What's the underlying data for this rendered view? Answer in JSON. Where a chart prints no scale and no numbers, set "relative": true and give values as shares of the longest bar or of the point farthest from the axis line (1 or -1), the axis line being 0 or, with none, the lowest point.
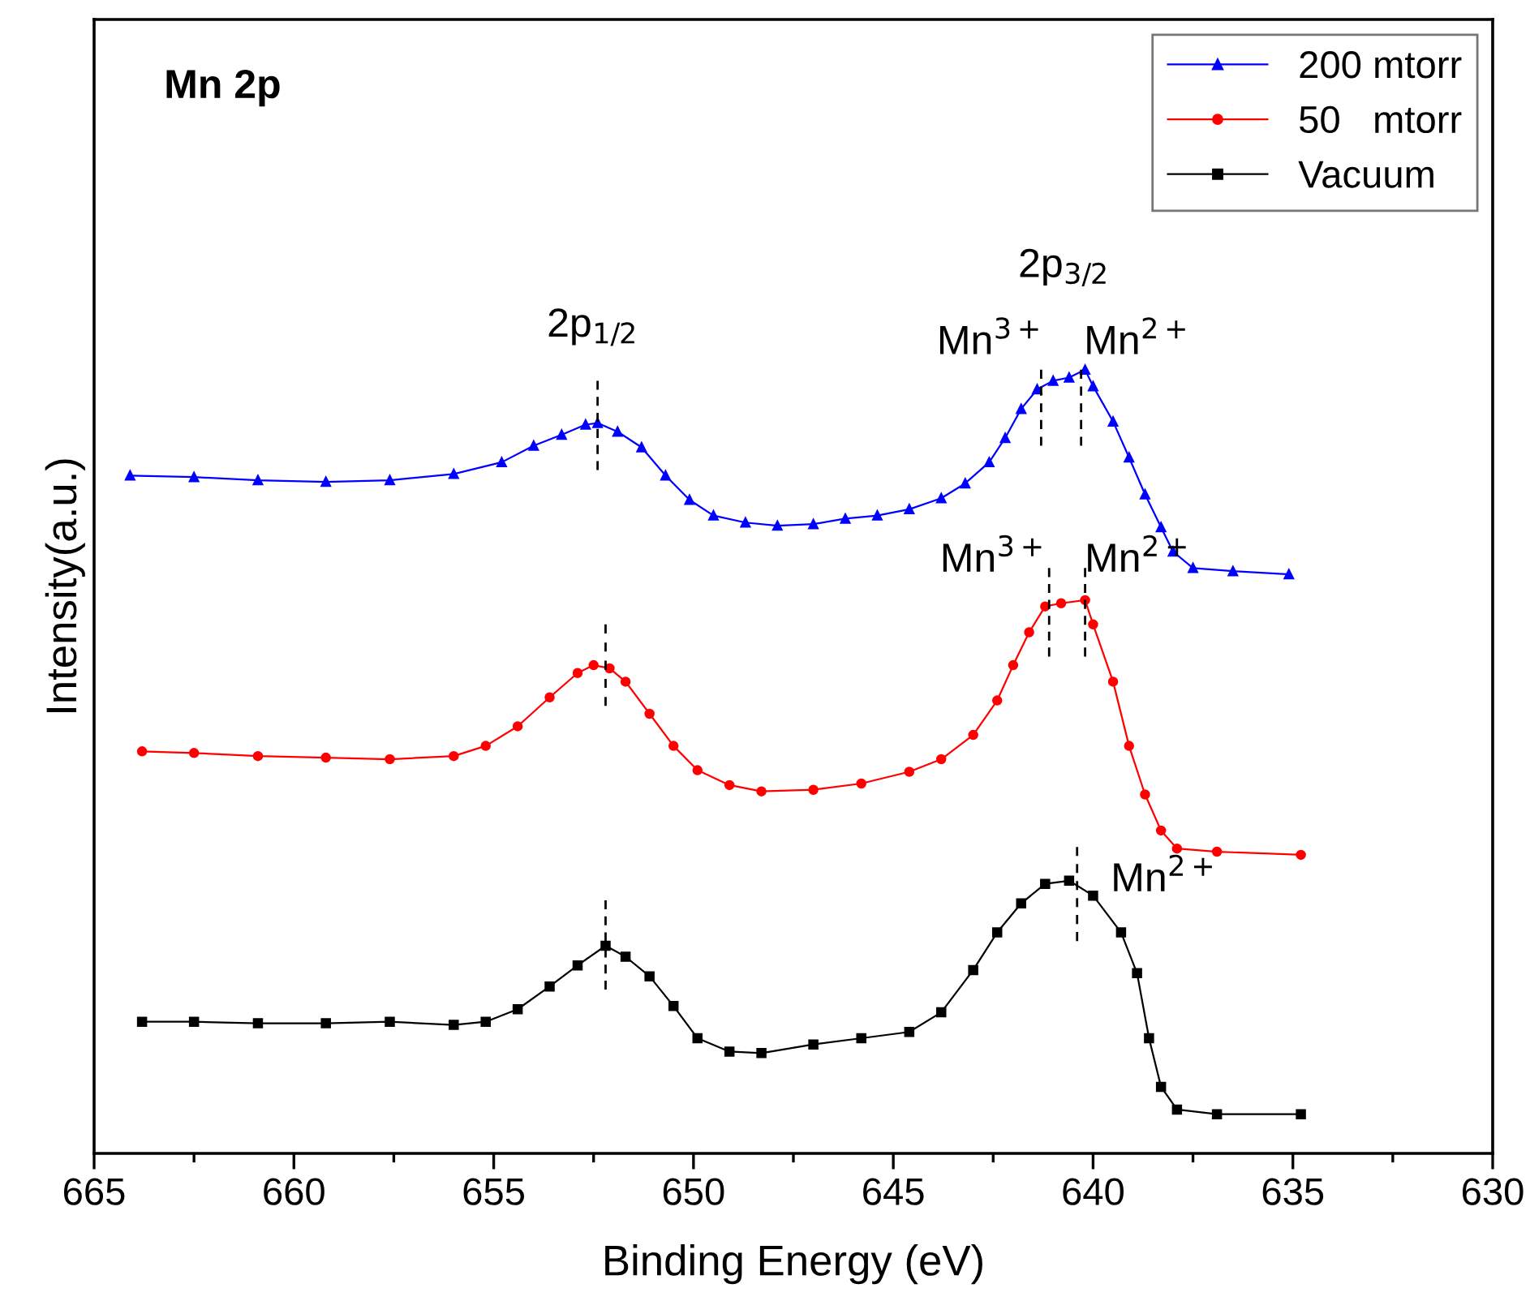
{
  "chart_data": {
    "type": "line",
    "relative": true,
    "xlabel": "Binding Energy (eV)",
    "ylabel": "Intensity(a.u.)",
    "xlim": [
      665,
      630
    ],
    "xticks": [
      665,
      {
        "value": 662.5,
        "label": null
      },
      660,
      {
        "value": 657.5,
        "label": null
      },
      655,
      {
        "value": 652.5,
        "label": null
      },
      650,
      {
        "value": 647.5,
        "label": null
      },
      645,
      {
        "value": 642.5,
        "label": null
      },
      640,
      {
        "value": 637.5,
        "label": null
      },
      635,
      {
        "value": 632.5,
        "label": null
      },
      630
    ],
    "tick_labels": "x",
    "grid": false,
    "legend": "top right",
    "series": [
      {
        "name": "200 mtorr",
        "color": "#0000ff",
        "marker": "triangle",
        "x": [
          664.1,
          662.5,
          660.9,
          659.2,
          657.6,
          656.0,
          654.8,
          654.0,
          653.3,
          652.7,
          652.4,
          651.9,
          651.3,
          650.7,
          650.1,
          649.5,
          648.7,
          647.9,
          647.0,
          646.2,
          645.4,
          644.6,
          643.8,
          643.2,
          642.6,
          642.2,
          641.8,
          641.4,
          641.0,
          640.6,
          640.2,
          640.0,
          639.5,
          639.1,
          638.7,
          638.3,
          638.0,
          637.5,
          636.5,
          635.1
        ],
        "values": [
          0.865,
          0.863,
          0.859,
          0.857,
          0.859,
          0.867,
          0.882,
          0.903,
          0.917,
          0.93,
          0.932,
          0.921,
          0.901,
          0.865,
          0.834,
          0.814,
          0.805,
          0.801,
          0.803,
          0.81,
          0.814,
          0.822,
          0.836,
          0.855,
          0.882,
          0.913,
          0.95,
          0.975,
          0.986,
          0.99,
          1.0,
          0.979,
          0.934,
          0.888,
          0.841,
          0.799,
          0.768,
          0.747,
          0.743,
          0.739
        ]
      },
      {
        "name": "50   mtorr",
        "color": "#ff0000",
        "marker": "circle",
        "x": [
          663.8,
          662.5,
          660.9,
          659.2,
          657.6,
          656.0,
          655.2,
          654.4,
          653.6,
          652.9,
          652.5,
          652.1,
          651.7,
          651.1,
          650.5,
          649.9,
          649.1,
          648.3,
          647.0,
          645.8,
          644.6,
          643.8,
          643.0,
          642.4,
          642.0,
          641.6,
          641.2,
          640.8,
          640.2,
          640.0,
          639.5,
          639.1,
          638.7,
          638.3,
          637.9,
          636.9,
          634.8
        ],
        "values": [
          0.513,
          0.511,
          0.507,
          0.505,
          0.503,
          0.507,
          0.52,
          0.545,
          0.582,
          0.613,
          0.623,
          0.619,
          0.602,
          0.561,
          0.52,
          0.489,
          0.47,
          0.462,
          0.464,
          0.472,
          0.487,
          0.503,
          0.534,
          0.578,
          0.623,
          0.665,
          0.698,
          0.702,
          0.706,
          0.675,
          0.602,
          0.52,
          0.458,
          0.412,
          0.389,
          0.385,
          0.381
        ]
      },
      {
        "name": "Vacuum",
        "color": "#000000",
        "marker": "square",
        "x": [
          663.8,
          662.5,
          660.9,
          659.2,
          657.6,
          656.0,
          655.2,
          654.4,
          653.6,
          652.9,
          652.2,
          651.7,
          651.1,
          650.5,
          649.9,
          649.1,
          648.3,
          647.0,
          645.8,
          644.6,
          643.8,
          643.0,
          642.4,
          641.8,
          641.2,
          640.6,
          640.0,
          639.3,
          638.9,
          638.6,
          638.3,
          637.9,
          636.9,
          634.8
        ],
        "values": [
          0.168,
          0.168,
          0.166,
          0.166,
          0.168,
          0.164,
          0.168,
          0.184,
          0.213,
          0.24,
          0.265,
          0.251,
          0.226,
          0.188,
          0.147,
          0.13,
          0.128,
          0.139,
          0.147,
          0.155,
          0.18,
          0.234,
          0.282,
          0.319,
          0.344,
          0.348,
          0.329,
          0.282,
          0.23,
          0.147,
          0.085,
          0.056,
          0.05,
          0.05
        ]
      },
      {
        "color": "#000000",
        "marker": "none",
        "line_style": "dashed",
        "x": [
          652.4,
          652.4
        ],
        "values": [
          0.986,
          0.872
        ]
      },
      {
        "color": "#000000",
        "marker": "none",
        "line_style": "dashed",
        "x": [
          641.3,
          641.3
        ],
        "values": [
          1.0,
          0.903
        ]
      },
      {
        "color": "#000000",
        "marker": "none",
        "line_style": "dashed",
        "x": [
          640.3,
          640.3
        ],
        "values": [
          1.0,
          0.903
        ]
      },
      {
        "color": "#000000",
        "marker": "none",
        "line_style": "dashed",
        "x": [
          652.2,
          652.2
        ],
        "values": [
          0.675,
          0.571
        ]
      },
      {
        "color": "#000000",
        "marker": "none",
        "line_style": "dashed",
        "x": [
          641.1,
          641.1
        ],
        "values": [
          0.747,
          0.634
        ]
      },
      {
        "color": "#000000",
        "marker": "none",
        "line_style": "dashed",
        "x": [
          640.2,
          640.2
        ],
        "values": [
          0.747,
          0.634
        ]
      },
      {
        "color": "#000000",
        "marker": "none",
        "line_style": "dashed",
        "x": [
          652.2,
          652.2
        ],
        "values": [
          0.323,
          0.209
        ]
      },
      {
        "color": "#000000",
        "marker": "none",
        "line_style": "dashed",
        "x": [
          640.4,
          640.4
        ],
        "values": [
          0.391,
          0.271
        ]
      }
    ],
    "annotations": [
      "Mn 2p",
      {
        "text": "2p$_{1/2}$",
        "x": 652.4,
        "y": 0.986
      },
      {
        "text": "2p$_{3/2}$",
        "x": 640.2,
        "y": 1.0
      },
      {
        "text": "Mn$^{3+}$",
        "x": 641.3,
        "y": 1.0
      },
      {
        "text": "Mn$^{2+}$",
        "x": 640.3,
        "y": 1.0
      },
      {
        "text": "Mn$^{3+}$",
        "x": 641.1,
        "y": 0.747
      },
      {
        "text": "Mn$^{2+}$",
        "x": 640.2,
        "y": 0.747
      },
      {
        "text": "Mn$^{2+}$",
        "x": 640.4,
        "y": 0.391
      }
    ]
  }
}
